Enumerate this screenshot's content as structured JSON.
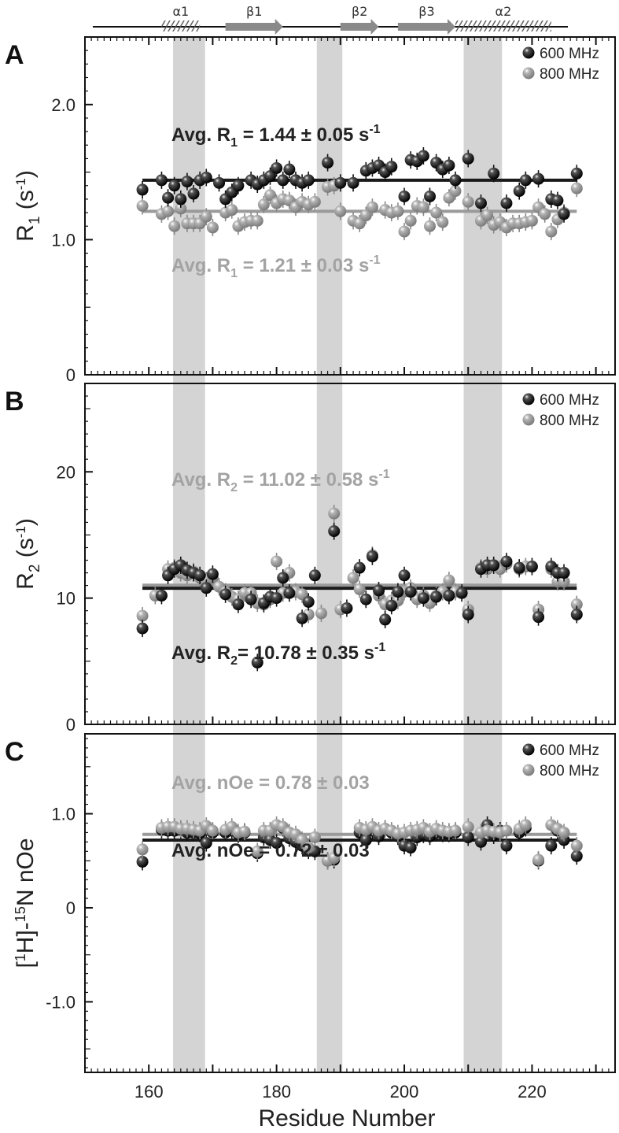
{
  "figure": {
    "x_axis_title": "Residue Number",
    "x_ticks": [
      "160",
      "180",
      "200",
      "220"
    ],
    "secondary_structure": [
      {
        "type": "helix",
        "label": "α1",
        "start": 162,
        "end": 168
      },
      {
        "type": "strand",
        "label": "β1",
        "start": 172,
        "end": 181
      },
      {
        "type": "strand",
        "label": "β2",
        "start": 190,
        "end": 196
      },
      {
        "type": "strand",
        "label": "β3",
        "start": 199,
        "end": 208
      },
      {
        "type": "helix",
        "label": "α2",
        "start": 208,
        "end": 223
      }
    ],
    "highlight_bands": [
      [
        163.8,
        168.8
      ],
      [
        186.3,
        190.3
      ],
      [
        209.3,
        215.3
      ]
    ],
    "colors": {
      "mhz600": "#1a1a1a",
      "mhz800": "#9a9a9a",
      "band": "#d4d4d4"
    }
  },
  "chart_data": [
    {
      "type": "scatter",
      "panel": "A",
      "ylabel_main": "R",
      "ylabel_sub": "1",
      "ylabel_unit": " (s",
      "ylabel_unit_sup": "-1",
      "ylabel_close": ")",
      "y_ticks": [
        "0",
        "1.0",
        "2.0"
      ],
      "xlim": [
        150,
        233
      ],
      "ylim": [
        0,
        2.5
      ],
      "legend": [
        "600 MHz",
        "800 MHz"
      ],
      "legend_position": "top-right",
      "series": [
        {
          "name": "600 MHz",
          "x": [
            159,
            162,
            163,
            164,
            165,
            166,
            167,
            168,
            169,
            171,
            172,
            173,
            174,
            176,
            177,
            178,
            179,
            180,
            181,
            182,
            183,
            184,
            185,
            188,
            190,
            192,
            194,
            195,
            196,
            197,
            198,
            200,
            201,
            202,
            203,
            204,
            205,
            206,
            207,
            208,
            210,
            212,
            214,
            216,
            218,
            219,
            221,
            223,
            224,
            225,
            227
          ],
          "y": [
            1.37,
            1.44,
            1.31,
            1.4,
            1.3,
            1.43,
            1.34,
            1.44,
            1.46,
            1.42,
            1.3,
            1.35,
            1.4,
            1.44,
            1.41,
            1.44,
            1.47,
            1.53,
            1.44,
            1.52,
            1.44,
            1.42,
            1.44,
            1.57,
            1.42,
            1.42,
            1.51,
            1.53,
            1.55,
            1.5,
            1.54,
            1.32,
            1.59,
            1.58,
            1.62,
            1.32,
            1.57,
            1.52,
            1.55,
            1.44,
            1.6,
            1.27,
            1.49,
            1.27,
            1.36,
            1.44,
            1.45,
            1.3,
            1.29,
            1.19,
            1.49
          ]
        },
        {
          "name": "800 MHz",
          "x": [
            159,
            162,
            163,
            164,
            165,
            166,
            167,
            168,
            169,
            170,
            172,
            173,
            174,
            175,
            176,
            177,
            178,
            179,
            180,
            181,
            182,
            183,
            184,
            185,
            186,
            188,
            189,
            190,
            192,
            193,
            194,
            195,
            197,
            198,
            199,
            200,
            201,
            202,
            203,
            204,
            205,
            206,
            207,
            208,
            210,
            212,
            213,
            214,
            215,
            216,
            217,
            218,
            219,
            220,
            221,
            222,
            223,
            224,
            225,
            227
          ],
          "y": [
            1.25,
            1.19,
            1.21,
            1.1,
            1.23,
            1.12,
            1.12,
            1.12,
            1.17,
            1.09,
            1.2,
            1.22,
            1.1,
            1.13,
            1.14,
            1.14,
            1.26,
            1.33,
            1.27,
            1.3,
            1.29,
            1.24,
            1.28,
            1.26,
            1.28,
            1.39,
            1.4,
            1.21,
            1.14,
            1.12,
            1.18,
            1.24,
            1.22,
            1.2,
            1.21,
            1.06,
            1.14,
            1.25,
            1.24,
            1.1,
            1.2,
            1.13,
            1.31,
            1.36,
            1.28,
            1.14,
            1.18,
            1.11,
            1.13,
            1.09,
            1.12,
            1.12,
            1.13,
            1.14,
            1.24,
            1.19,
            1.06,
            1.15,
            1.2,
            1.38
          ]
        }
      ],
      "averages": [
        {
          "label": "Avg. R",
          "sub": "1",
          "value": " = 1.44 ± 0.05 s",
          "sup": "-1",
          "y": 1.44,
          "series": "600 MHz"
        },
        {
          "label": "Avg. R",
          "sub": "1",
          "value": " = 1.21 ± 0.03 s",
          "sup": "-1",
          "y": 1.21,
          "series": "800 MHz"
        }
      ]
    },
    {
      "type": "scatter",
      "panel": "B",
      "ylabel_main": "R",
      "ylabel_sub": "2",
      "ylabel_unit": " (s",
      "ylabel_unit_sup": "-1",
      "ylabel_close": ")",
      "y_ticks": [
        "0",
        "10",
        "20"
      ],
      "xlim": [
        150,
        233
      ],
      "ylim": [
        0,
        27
      ],
      "legend": [
        "600 MHz",
        "800 MHz"
      ],
      "legend_position": "top-right",
      "series": [
        {
          "name": "600 MHz",
          "x": [
            159,
            162,
            163,
            164,
            165,
            166,
            167,
            168,
            169,
            170,
            172,
            174,
            176,
            177,
            178,
            179,
            180,
            181,
            182,
            184,
            185,
            186,
            189,
            191,
            193,
            194,
            195,
            196,
            197,
            198,
            199,
            200,
            201,
            203,
            205,
            207,
            209,
            210,
            212,
            213,
            214,
            216,
            218,
            220,
            221,
            223,
            224,
            225,
            227
          ],
          "y": [
            7.6,
            10.2,
            11.8,
            12.3,
            12.6,
            12.2,
            12.0,
            11.8,
            10.8,
            11.9,
            10.3,
            9.5,
            9.9,
            4.9,
            9.6,
            10.1,
            10.0,
            11.6,
            10.4,
            8.4,
            9.7,
            11.8,
            15.3,
            9.2,
            12.4,
            9.9,
            13.3,
            10.6,
            8.3,
            9.4,
            10.5,
            11.8,
            10.5,
            10.0,
            10.1,
            10.2,
            10.4,
            8.7,
            12.3,
            12.6,
            12.6,
            12.9,
            12.4,
            12.5,
            8.5,
            12.5,
            12.0,
            12.0,
            8.7
          ]
        },
        {
          "name": "800 MHz",
          "x": [
            159,
            161,
            163,
            164,
            165,
            166,
            167,
            168,
            169,
            170,
            171,
            172,
            173,
            174,
            175,
            176,
            177,
            178,
            179,
            180,
            181,
            182,
            183,
            184,
            185,
            187,
            189,
            190,
            192,
            193,
            195,
            196,
            197,
            198,
            199,
            200,
            201,
            202,
            203,
            204,
            205,
            206,
            207,
            208,
            210,
            212,
            213,
            215,
            216,
            218,
            219,
            221,
            223,
            224,
            225,
            227
          ],
          "y": [
            8.6,
            10.2,
            12.3,
            12.4,
            12.0,
            11.8,
            12.1,
            11.6,
            11.4,
            11.6,
            10.9,
            10.5,
            10.1,
            9.9,
            10.4,
            10.4,
            9.6,
            9.5,
            9.9,
            12.9,
            10.4,
            12.0,
            10.5,
            10.3,
            8.7,
            8.8,
            16.7,
            9.1,
            11.6,
            10.7,
            13.4,
            10.2,
            9.5,
            9.8,
            9.8,
            10.5,
            10.8,
            9.9,
            10.2,
            9.6,
            10.2,
            10.5,
            11.4,
            10.5,
            9.1,
            12.4,
            12.3,
            12.3,
            12.7,
            12.3,
            12.5,
            9.1,
            12.3,
            11.3,
            11.3,
            9.5
          ]
        }
      ],
      "averages": [
        {
          "label": "Avg. R",
          "sub": "2",
          "value": " = 11.02 ± 0.58 s",
          "sup": "-1",
          "y": 11.02,
          "series": "800 MHz"
        },
        {
          "label": "Avg. R",
          "sub": "2",
          "value": "= 10.78 ± 0.35 s",
          "sup": "-1",
          "y": 10.78,
          "series": "600 MHz"
        }
      ]
    },
    {
      "type": "scatter",
      "panel": "C",
      "ylabel_pre": "[",
      "ylabel_sup1": "1",
      "ylabel_mid": "H]-",
      "ylabel_sup2": "15",
      "ylabel_end": "N nOe",
      "y_ticks": [
        "-1.0",
        "0",
        "1.0"
      ],
      "xlim": [
        150,
        233
      ],
      "ylim": [
        -1.75,
        1.85
      ],
      "legend": [
        "600 MHz",
        "800 MHz"
      ],
      "legend_position": "top-right",
      "series": [
        {
          "name": "600 MHz",
          "x": [
            159,
            162,
            163,
            164,
            165,
            166,
            167,
            168,
            169,
            170,
            172,
            173,
            174,
            175,
            177,
            178,
            179,
            180,
            181,
            182,
            183,
            184,
            185,
            186,
            188,
            189,
            193,
            194,
            195,
            196,
            197,
            198,
            199,
            200,
            201,
            202,
            203,
            204,
            205,
            206,
            207,
            208,
            210,
            212,
            213,
            214,
            215,
            216,
            218,
            219,
            221,
            223,
            224,
            225,
            227
          ],
          "y": [
            0.49,
            0.83,
            0.82,
            0.82,
            0.83,
            0.8,
            0.8,
            0.79,
            0.69,
            0.8,
            0.8,
            0.82,
            0.78,
            0.8,
            0.58,
            0.75,
            0.72,
            0.69,
            0.85,
            0.74,
            0.7,
            0.66,
            0.61,
            0.6,
            0.5,
            0.51,
            0.8,
            0.72,
            0.82,
            0.76,
            0.84,
            0.8,
            0.76,
            0.66,
            0.64,
            0.75,
            0.78,
            0.76,
            0.8,
            0.79,
            0.79,
            0.8,
            0.75,
            0.7,
            0.88,
            0.77,
            0.82,
            0.66,
            0.8,
            0.85,
            0.5,
            0.66,
            0.82,
            0.72,
            0.55
          ]
        },
        {
          "name": "800 MHz",
          "x": [
            159,
            162,
            163,
            164,
            165,
            166,
            167,
            168,
            169,
            170,
            172,
            173,
            174,
            175,
            177,
            178,
            179,
            180,
            181,
            182,
            183,
            184,
            185,
            186,
            188,
            189,
            193,
            194,
            195,
            196,
            197,
            198,
            199,
            200,
            201,
            202,
            203,
            204,
            205,
            206,
            207,
            208,
            210,
            212,
            213,
            214,
            215,
            216,
            218,
            219,
            221,
            223,
            224,
            225,
            227
          ],
          "y": [
            0.62,
            0.85,
            0.86,
            0.86,
            0.84,
            0.84,
            0.83,
            0.82,
            0.87,
            0.82,
            0.83,
            0.86,
            0.8,
            0.81,
            0.6,
            0.82,
            0.82,
            0.88,
            0.86,
            0.8,
            0.78,
            0.72,
            0.64,
            0.75,
            0.5,
            0.53,
            0.85,
            0.83,
            0.86,
            0.82,
            0.84,
            0.82,
            0.79,
            0.8,
            0.82,
            0.83,
            0.85,
            0.81,
            0.84,
            0.82,
            0.81,
            0.82,
            0.86,
            0.8,
            0.82,
            0.81,
            0.8,
            0.82,
            0.84,
            0.88,
            0.51,
            0.88,
            0.84,
            0.8,
            0.66
          ]
        }
      ],
      "averages": [
        {
          "label": "Avg. nOe = 0.78 ± 0.03",
          "y": 0.78,
          "series": "800 MHz"
        },
        {
          "label": "Avg. nOe = 0.72 ± 0.03",
          "y": 0.72,
          "series": "600 MHz"
        }
      ]
    }
  ]
}
